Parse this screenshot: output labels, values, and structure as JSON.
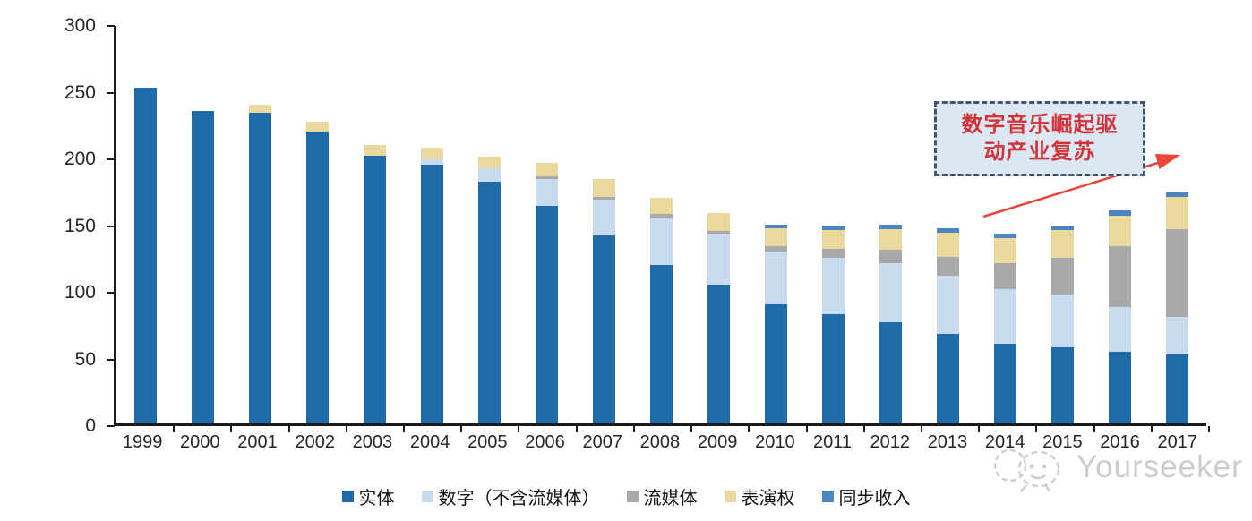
{
  "chart_data": {
    "type": "bar",
    "stacked": true,
    "title": "",
    "xlabel": "",
    "ylabel": "",
    "grid": false,
    "legend_position": "bottom",
    "ylim": [
      0,
      300
    ],
    "yticks": [
      0,
      50,
      100,
      150,
      200,
      250,
      300
    ],
    "categories": [
      "1999",
      "2000",
      "2001",
      "2002",
      "2003",
      "2004",
      "2005",
      "2006",
      "2007",
      "2008",
      "2009",
      "2010",
      "2011",
      "2012",
      "2013",
      "2014",
      "2015",
      "2016",
      "2017"
    ],
    "series": [
      {
        "name": "实体",
        "color": "#1E6BA7",
        "values": [
          252,
          234,
          233,
          219,
          201,
          194,
          181,
          163,
          141,
          119,
          104,
          89,
          82,
          76,
          67,
          60,
          57,
          54,
          52
        ]
      },
      {
        "name": "数字（不含流媒体）",
        "color": "#C8DBEF",
        "values": [
          0,
          0,
          0,
          0,
          0,
          4,
          10,
          20,
          27,
          35,
          38,
          40,
          42,
          44,
          44,
          41,
          40,
          33,
          28
        ]
      },
      {
        "name": "流媒体",
        "color": "#A8A8A8",
        "values": [
          0,
          0,
          0,
          0,
          0,
          0,
          0,
          2,
          2,
          3,
          2,
          4,
          7,
          10,
          14,
          19,
          27,
          46,
          66
        ]
      },
      {
        "name": "表演权",
        "color": "#EAD89D",
        "values": [
          0,
          0,
          6,
          7,
          8,
          9,
          9,
          10,
          13,
          12,
          14,
          13,
          14,
          16,
          18,
          19,
          21,
          23,
          24
        ]
      },
      {
        "name": "同步收入",
        "color": "#4C85C2",
        "values": [
          0,
          0,
          0,
          0,
          0,
          0,
          0,
          0,
          0,
          0,
          0,
          3,
          3,
          3,
          3,
          3,
          3,
          4,
          3
        ]
      }
    ],
    "totals": [
      252,
      234,
      239,
      226,
      209,
      207,
      200,
      195,
      183,
      169,
      158,
      149,
      148,
      149,
      146,
      142,
      148,
      160,
      173
    ]
  },
  "annotation": {
    "line1": "数字音乐崛起驱",
    "line2": "动产业复苏",
    "text_color": "#D2343A",
    "box_fill": "#DCE7F4",
    "box_border": "#44546A",
    "arrow_color": "#E8463B"
  },
  "watermark": {
    "text": "Yourseeker",
    "color": "#C4C4C4"
  }
}
